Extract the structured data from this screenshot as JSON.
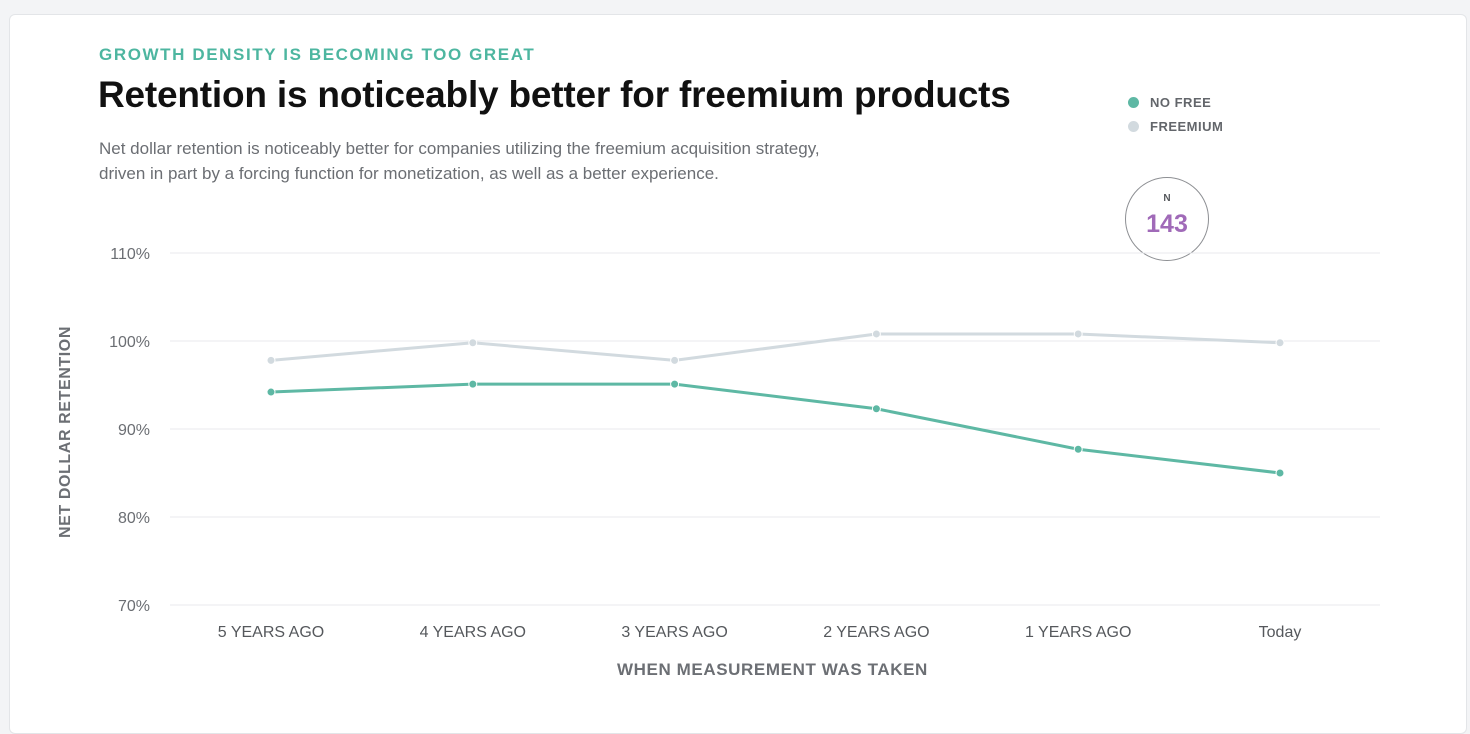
{
  "header": {
    "eyebrow": "GROWTH DENSITY IS BECOMING TOO GREAT",
    "title": "Retention is noticeably better for freemium products",
    "subtitle_line1": "Net dollar retention is noticeably better for companies utilizing the freemium acquisition strategy,",
    "subtitle_line2": "driven in part by a forcing function for monetization, as well as a better experience."
  },
  "legend": [
    {
      "label": "NO FREE",
      "color": "#5eb8a4"
    },
    {
      "label": "FREEMIUM",
      "color": "#d2dadf"
    }
  ],
  "badge": {
    "label": "N",
    "value": "143"
  },
  "colors": {
    "accent": "#4db6a0",
    "badge_value": "#a06ab8",
    "grid": "#e8eaed"
  },
  "chart_data": {
    "type": "line",
    "categories": [
      "5 YEARS AGO",
      "4 YEARS AGO",
      "3 YEARS AGO",
      "2 YEARS AGO",
      "1 YEARS AGO",
      "Today"
    ],
    "series": [
      {
        "name": "NO FREE",
        "color": "#5eb8a4",
        "values": [
          94.2,
          95.1,
          95.1,
          92.3,
          87.7,
          85.0
        ]
      },
      {
        "name": "FREEMIUM",
        "color": "#d2dadf",
        "values": [
          97.8,
          99.8,
          97.8,
          100.8,
          100.8,
          99.8
        ]
      }
    ],
    "ylim": [
      70,
      110
    ],
    "yticks": [
      70,
      80,
      90,
      100,
      110
    ],
    "ytick_labels": [
      "70%",
      "80%",
      "90%",
      "100%",
      "110%"
    ],
    "xlabel": "WHEN MEASUREMENT WAS TAKEN",
    "ylabel": "NET DOLLAR RETENTION",
    "grid": true,
    "legend_position": "top-right"
  }
}
